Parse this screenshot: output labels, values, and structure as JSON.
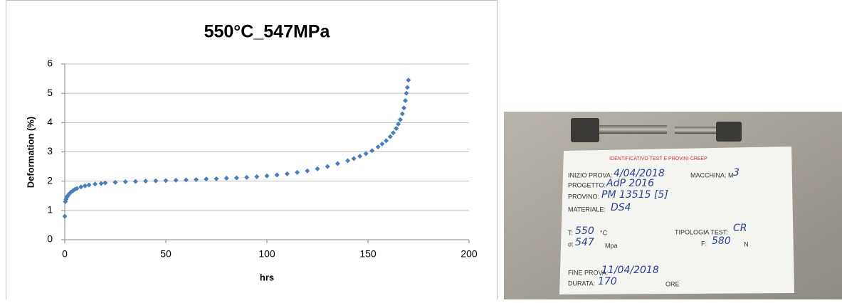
{
  "chart_data": {
    "type": "scatter",
    "title": "550°C_547MPa",
    "x_label": "hrs",
    "y_label": "Deformation (%)",
    "x": [
      0,
      0.3,
      0.6,
      1,
      1.5,
      2,
      3,
      4,
      5,
      6,
      8,
      10,
      12,
      15,
      18,
      20,
      25,
      30,
      35,
      40,
      45,
      50,
      55,
      60,
      65,
      70,
      75,
      80,
      85,
      90,
      95,
      100,
      105,
      110,
      115,
      120,
      125,
      130,
      135,
      140,
      143,
      146,
      149,
      152,
      155,
      157,
      159,
      161,
      162.5,
      164,
      165,
      166,
      167,
      167.8,
      168.5,
      169,
      169.5,
      170
    ],
    "values": [
      0.8,
      1.3,
      1.38,
      1.45,
      1.5,
      1.55,
      1.62,
      1.67,
      1.72,
      1.75,
      1.8,
      1.84,
      1.87,
      1.9,
      1.92,
      1.94,
      1.96,
      1.98,
      1.99,
      2.0,
      2.01,
      2.02,
      2.03,
      2.04,
      2.05,
      2.07,
      2.08,
      2.1,
      2.11,
      2.13,
      2.15,
      2.18,
      2.21,
      2.25,
      2.3,
      2.35,
      2.42,
      2.5,
      2.6,
      2.7,
      2.77,
      2.85,
      2.94,
      3.04,
      3.17,
      3.27,
      3.38,
      3.52,
      3.65,
      3.8,
      3.95,
      4.1,
      4.3,
      4.5,
      4.75,
      5.0,
      5.2,
      5.45
    ],
    "color": "#4a7ebb",
    "xlim": [
      0,
      200
    ],
    "xticks": [
      0,
      50,
      100,
      150,
      200
    ],
    "ylim": [
      0,
      6
    ],
    "yticks": [
      0,
      1,
      2,
      3,
      4,
      5,
      6
    ],
    "grid": true
  },
  "photo": {
    "card": {
      "title": "IDENTIFICATIVO TEST E PROVINI CREEP",
      "start_label": "INIZIO PROVA:",
      "start": "4/04/2018",
      "machine_label": "MACCHINA: M",
      "machine": "3",
      "project_label": "PROGETTO:",
      "project": "AdP 2016",
      "specimen_label": "PROVINO:",
      "specimen": "PM 13515 [5]",
      "material_label": "MATERIALE:",
      "material": "DS4",
      "temp_label": "T:",
      "temp": "550",
      "temp_unit": "°C",
      "test_type_label": "TIPOLOGIA TEST:",
      "test_type": "CR",
      "stress_label": "σ:",
      "stress": "547",
      "stress_unit": "Mpa",
      "force_label": "F:",
      "force": "580",
      "force_unit": "N",
      "end_label": "FINE PROVA:",
      "end": "11/04/2018",
      "duration_label": "DURATA:",
      "duration": "170",
      "duration_unit": "ORE"
    }
  }
}
